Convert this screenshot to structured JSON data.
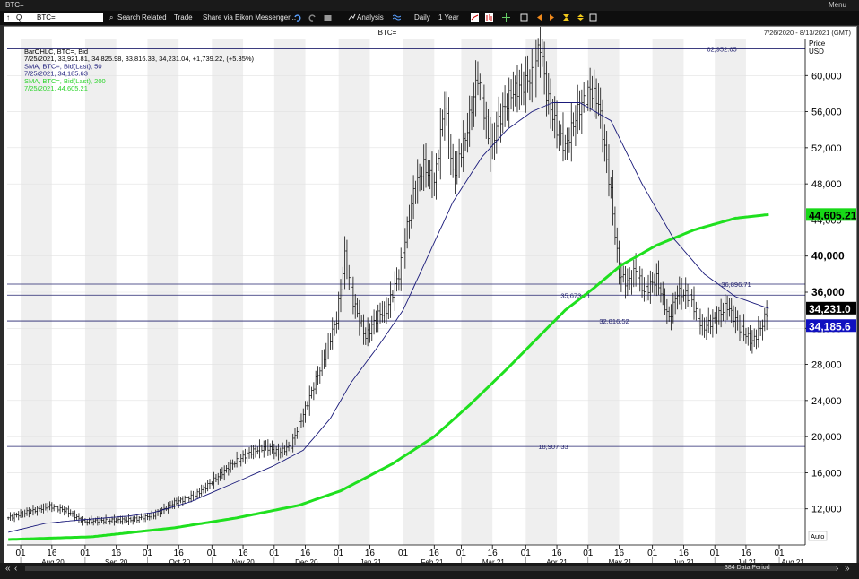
{
  "window": {
    "title": "BTC=",
    "menu_label": "Menu"
  },
  "toolbar": {
    "ric_value": "BTC=",
    "ric_prefix": "Q",
    "search": "Search",
    "related": "Related",
    "trade": "Trade",
    "share": "Share via Eikon Messenger...",
    "analysis": "Analysis",
    "interval": "Daily",
    "range": "1 Year"
  },
  "chart_header": {
    "title": "BTC=",
    "date_range": "7/26/2020 - 8/13/2021 (GMT)"
  },
  "legend": [
    {
      "text": "BarOHLC, BTC=, Bid",
      "color": "#000000"
    },
    {
      "text": "7/25/2021, 33,921.81, 34,825.98, 33,816.33, 34,231.04, +1,739.22, (+5.35%)",
      "color": "#000000"
    },
    {
      "text": "SMA, BTC=, Bid(Last), 50",
      "color": "#1a1a7a"
    },
    {
      "text": "7/25/2021, 34,185.63",
      "color": "#1a1a7a"
    },
    {
      "text": "SMA, BTC=, Bid(Last), 200",
      "color": "#2bd42b"
    },
    {
      "text": "7/25/2021, 44,605.21",
      "color": "#2bd42b"
    }
  ],
  "footer": {
    "data_period": "384 Data Period",
    "auto_label": "Auto"
  },
  "chart_data": {
    "type": "ohlc_bar",
    "ticker": "BTC=",
    "ylabel": "Price\nUSD",
    "ylim": [
      8000,
      64000
    ],
    "yticks": [
      12000,
      16000,
      20000,
      24000,
      28000,
      32000,
      36000,
      40000,
      44000,
      48000,
      52000,
      56000,
      60000
    ],
    "ytick_labels": [
      "12,000",
      "16,000",
      "20,000",
      "24,000",
      "28,000",
      "32,000",
      "36,000",
      "40,000",
      "44,000",
      "48,000",
      "52,000",
      "56,000",
      "60,000"
    ],
    "x_day_ticks": [
      "01",
      "16",
      "01",
      "16",
      "01",
      "16",
      "01",
      "16",
      "01",
      "16",
      "01",
      "16",
      "01",
      "16",
      "01",
      "16",
      "01",
      "16",
      "01",
      "16",
      "01",
      "16",
      "01",
      "16",
      "01"
    ],
    "x_month_labels": [
      "Aug 20",
      "Sep 20",
      "Oct 20",
      "Nov 20",
      "Dec 20",
      "Jan 21",
      "Feb 21",
      "Mar 21",
      "Apr 21",
      "May 21",
      "Jun 21",
      "Jul 21",
      "Aug 21"
    ],
    "horizontal_lines": [
      {
        "value": 62952.65,
        "label": "62,952.65"
      },
      {
        "value": 36896.71,
        "label": "36,896.71"
      },
      {
        "value": 35673.91,
        "label": "35,673.91"
      },
      {
        "value": 32816.52,
        "label": "32,816.52"
      },
      {
        "value": 18907.33,
        "label": "18,907.33"
      }
    ],
    "last_labels": [
      {
        "value": 44605.21,
        "label": "44,605.21",
        "bg": "#17d817",
        "fg": "#000000"
      },
      {
        "value": 34231.04,
        "label": "34,231.0",
        "bg": "#000000",
        "fg": "#ffffff"
      },
      {
        "value": 32300,
        "label": "34,185.6",
        "bg": "#1010c0",
        "fg": "#ffffff"
      }
    ],
    "price_anchors": [
      [
        0,
        11000
      ],
      [
        10,
        11700
      ],
      [
        20,
        12300
      ],
      [
        28,
        11800
      ],
      [
        36,
        10600
      ],
      [
        46,
        10700
      ],
      [
        60,
        10800
      ],
      [
        70,
        11300
      ],
      [
        80,
        12700
      ],
      [
        90,
        13500
      ],
      [
        98,
        15000
      ],
      [
        108,
        17000
      ],
      [
        116,
        18200
      ],
      [
        124,
        18900
      ],
      [
        130,
        18200
      ],
      [
        136,
        19000
      ],
      [
        142,
        22500
      ],
      [
        150,
        27500
      ],
      [
        158,
        33000
      ],
      [
        162,
        40000
      ],
      [
        166,
        35000
      ],
      [
        172,
        31000
      ],
      [
        178,
        33500
      ],
      [
        182,
        34000
      ],
      [
        188,
        38000
      ],
      [
        195,
        47000
      ],
      [
        200,
        50000
      ],
      [
        205,
        48000
      ],
      [
        210,
        57000
      ],
      [
        214,
        49000
      ],
      [
        220,
        53000
      ],
      [
        226,
        60000
      ],
      [
        232,
        52000
      ],
      [
        236,
        55000
      ],
      [
        242,
        58000
      ],
      [
        248,
        59000
      ],
      [
        252,
        60000
      ],
      [
        256,
        63500
      ],
      [
        259,
        58000
      ],
      [
        264,
        54000
      ],
      [
        268,
        52000
      ],
      [
        274,
        56000
      ],
      [
        280,
        58500
      ],
      [
        284,
        57000
      ],
      [
        290,
        47000
      ],
      [
        294,
        38000
      ],
      [
        298,
        37000
      ],
      [
        302,
        38500
      ],
      [
        306,
        36000
      ],
      [
        312,
        37500
      ],
      [
        318,
        33000
      ],
      [
        322,
        36000
      ],
      [
        328,
        35500
      ],
      [
        334,
        32000
      ],
      [
        340,
        33000
      ],
      [
        346,
        34500
      ],
      [
        352,
        32000
      ],
      [
        358,
        30500
      ],
      [
        362,
        32000
      ],
      [
        366,
        34200
      ]
    ],
    "sma50_anchors": [
      [
        0,
        9400
      ],
      [
        18,
        10400
      ],
      [
        36,
        10800
      ],
      [
        58,
        11200
      ],
      [
        70,
        11600
      ],
      [
        88,
        12800
      ],
      [
        110,
        15000
      ],
      [
        128,
        16800
      ],
      [
        142,
        18500
      ],
      [
        155,
        22000
      ],
      [
        165,
        26000
      ],
      [
        178,
        30000
      ],
      [
        190,
        34000
      ],
      [
        202,
        40000
      ],
      [
        214,
        46000
      ],
      [
        228,
        51000
      ],
      [
        240,
        54000
      ],
      [
        252,
        56000
      ],
      [
        262,
        57000
      ],
      [
        275,
        57000
      ],
      [
        290,
        55000
      ],
      [
        305,
        48000
      ],
      [
        320,
        42000
      ],
      [
        335,
        38000
      ],
      [
        350,
        35500
      ],
      [
        366,
        34200
      ]
    ],
    "sma200_anchors": [
      [
        0,
        8600
      ],
      [
        40,
        8900
      ],
      [
        80,
        9900
      ],
      [
        110,
        11000
      ],
      [
        140,
        12400
      ],
      [
        160,
        14000
      ],
      [
        185,
        17000
      ],
      [
        205,
        20000
      ],
      [
        222,
        23500
      ],
      [
        240,
        27500
      ],
      [
        255,
        31000
      ],
      [
        268,
        34000
      ],
      [
        282,
        36500
      ],
      [
        295,
        39000
      ],
      [
        312,
        41200
      ],
      [
        330,
        42900
      ],
      [
        350,
        44200
      ],
      [
        366,
        44605
      ]
    ],
    "legend_position": "top-left"
  }
}
